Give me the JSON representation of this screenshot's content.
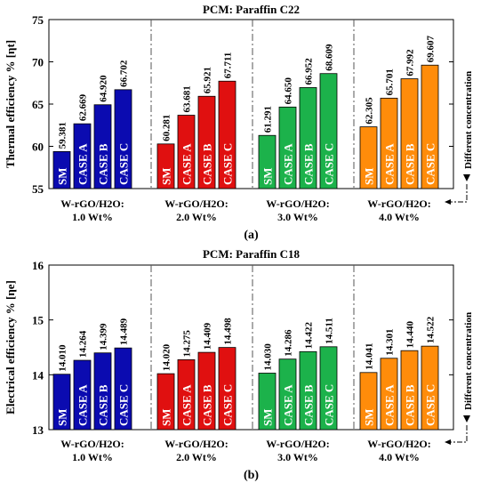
{
  "colors": {
    "group1": "#0b0bb0",
    "group2": "#e01010",
    "group3": "#1cb24b",
    "group4": "#ff8c0a"
  },
  "case_labels": [
    "SM",
    "CASE A",
    "CASE B",
    "CASE C"
  ],
  "group_labels": [
    [
      "W-rGO/H2O:",
      "1.0 Wt%"
    ],
    [
      "W-rGO/H2O:",
      "2.0 Wt%"
    ],
    [
      "W-rGO/H2O:",
      "3.0 Wt%"
    ],
    [
      "W-rGO/H2O:",
      "4.0 Wt%"
    ]
  ],
  "side_note": "Different concentration",
  "chart_data": [
    {
      "type": "bar",
      "title": "PCM: Paraffin C22",
      "ylabel": "Thermal efficiency % [ηt]",
      "caption": "(a)",
      "ylim": [
        55,
        75
      ],
      "yticks": [
        55,
        60,
        65,
        70,
        75
      ],
      "categories": [
        "SM",
        "CASE A",
        "CASE B",
        "CASE C"
      ],
      "series": [
        {
          "values": [
            59.381,
            62.669,
            64.92,
            66.702
          ],
          "labels": [
            "59.381",
            "62.669",
            "64.920",
            "66.702"
          ]
        },
        {
          "values": [
            60.281,
            63.681,
            65.921,
            67.711
          ],
          "labels": [
            "60.281",
            "63.681",
            "65.921",
            "67.711"
          ]
        },
        {
          "values": [
            61.291,
            64.65,
            66.952,
            68.609
          ],
          "labels": [
            "61.291",
            "64.650",
            "66.952",
            "68.609"
          ]
        },
        {
          "values": [
            62.305,
            65.701,
            67.992,
            69.607
          ],
          "labels": [
            "62.305",
            "65.701",
            "67.992",
            "69.607"
          ]
        }
      ]
    },
    {
      "type": "bar",
      "title": "PCM: Paraffin C18",
      "ylabel": "Electrical efficiency % [ηe]",
      "caption": "(b)",
      "ylim": [
        13,
        16
      ],
      "yticks": [
        13,
        14,
        15,
        16
      ],
      "categories": [
        "SM",
        "CASE A",
        "CASE B",
        "CASE C"
      ],
      "series": [
        {
          "values": [
            14.01,
            14.264,
            14.399,
            14.489
          ],
          "labels": [
            "14.010",
            "14.264",
            "14.399",
            "14.489"
          ]
        },
        {
          "values": [
            14.02,
            14.275,
            14.409,
            14.498
          ],
          "labels": [
            "14.020",
            "14.275",
            "14.409",
            "14.498"
          ]
        },
        {
          "values": [
            14.03,
            14.286,
            14.422,
            14.511
          ],
          "labels": [
            "14.030",
            "14.286",
            "14.422",
            "14.511"
          ]
        },
        {
          "values": [
            14.041,
            14.301,
            14.44,
            14.522
          ],
          "labels": [
            "14.041",
            "14.301",
            "14.440",
            "14.522"
          ]
        }
      ]
    }
  ]
}
